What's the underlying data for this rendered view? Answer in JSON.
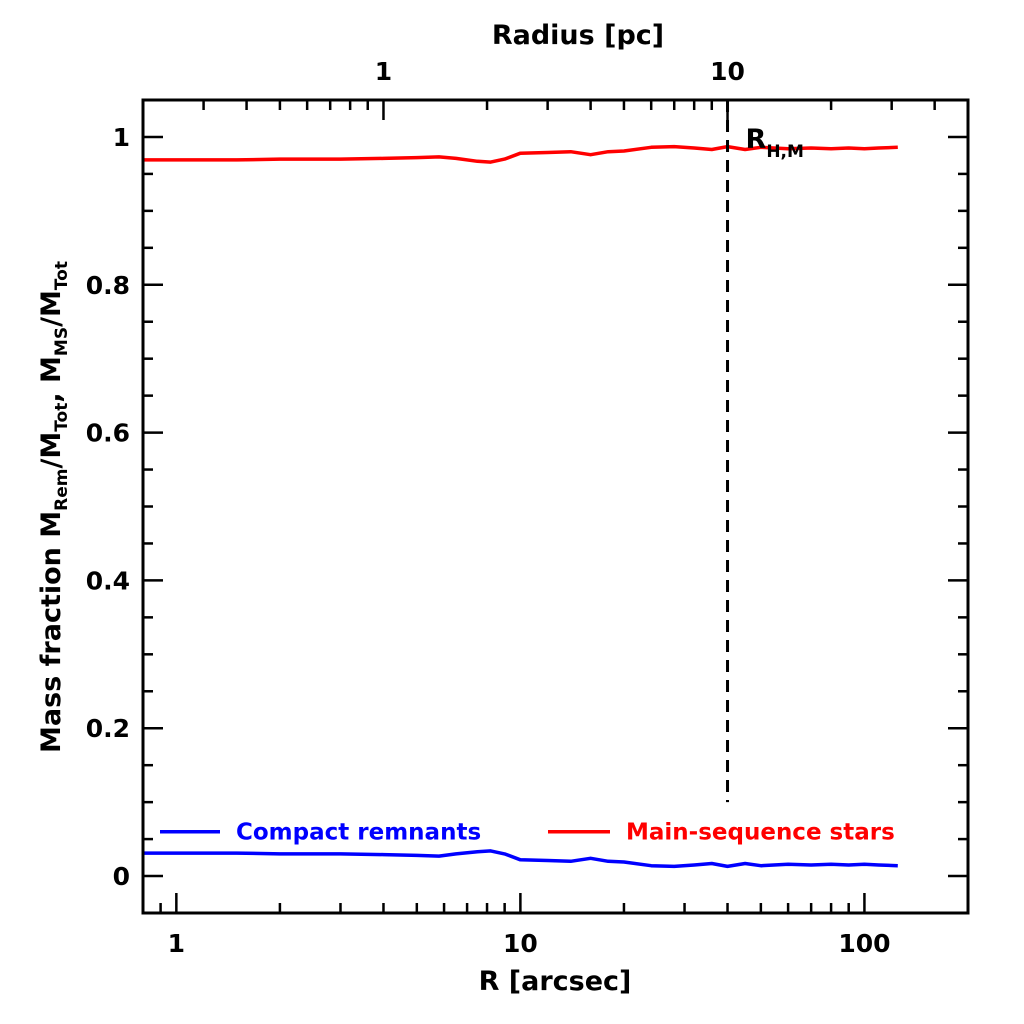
{
  "chart_data": {
    "type": "line",
    "xlabel": "R [arcsec]",
    "x2label": "Radius [pc]",
    "ylabel_parts": {
      "prefix": "Mass fraction  M",
      "sub1": "Rem",
      "mid1": "/M",
      "sub2": "Tot",
      "mid2": ", M",
      "sub3": "MS",
      "mid3": "/M",
      "sub4": "Tot"
    },
    "x_scale": "log",
    "xlim": [
      0.8,
      200
    ],
    "ylim": [
      -0.05,
      1.05
    ],
    "x_ticks": [
      "1",
      "10",
      "100"
    ],
    "y_ticks": [
      "0",
      "0.2",
      "0.4",
      "0.6",
      "0.8",
      "1"
    ],
    "x2_ticks": [
      {
        "label": "1",
        "arcsec": 4.0
      },
      {
        "label": "10",
        "arcsec": 40.0
      }
    ],
    "vline": {
      "x": 40.0,
      "label": "R",
      "label_sub": "H,M",
      "ymax": 0.1,
      "ytop": 1.05,
      "color": "#000000"
    },
    "series": [
      {
        "name": "Main-sequence stars",
        "color": "#ff0000",
        "x": [
          0.8,
          1.0,
          1.5,
          2.0,
          3.0,
          4.0,
          5.0,
          5.8,
          6.5,
          7.5,
          8.2,
          9.0,
          10.0,
          12.0,
          14.0,
          16.0,
          18.0,
          20.0,
          24.0,
          28.0,
          32.0,
          36.0,
          40.0,
          45.0,
          50.0,
          60.0,
          70.0,
          80.0,
          90.0,
          100.0,
          110.0,
          125.0
        ],
        "values": [
          0.969,
          0.969,
          0.969,
          0.97,
          0.97,
          0.971,
          0.972,
          0.973,
          0.971,
          0.967,
          0.966,
          0.97,
          0.978,
          0.979,
          0.98,
          0.976,
          0.98,
          0.981,
          0.986,
          0.987,
          0.985,
          0.983,
          0.987,
          0.983,
          0.986,
          0.984,
          0.985,
          0.984,
          0.985,
          0.984,
          0.985,
          0.986
        ]
      },
      {
        "name": "Compact remnants",
        "color": "#0000ff",
        "x": [
          0.8,
          1.0,
          1.5,
          2.0,
          3.0,
          4.0,
          5.0,
          5.8,
          6.5,
          7.5,
          8.2,
          9.0,
          10.0,
          12.0,
          14.0,
          16.0,
          18.0,
          20.0,
          24.0,
          28.0,
          32.0,
          36.0,
          40.0,
          45.0,
          50.0,
          60.0,
          70.0,
          80.0,
          90.0,
          100.0,
          110.0,
          125.0
        ],
        "values": [
          0.031,
          0.031,
          0.031,
          0.03,
          0.03,
          0.029,
          0.028,
          0.027,
          0.03,
          0.033,
          0.034,
          0.03,
          0.022,
          0.021,
          0.02,
          0.024,
          0.02,
          0.019,
          0.014,
          0.013,
          0.015,
          0.017,
          0.013,
          0.017,
          0.014,
          0.016,
          0.015,
          0.016,
          0.015,
          0.016,
          0.015,
          0.014
        ]
      }
    ],
    "legend_order": [
      "Compact remnants",
      "Main-sequence stars"
    ],
    "legend_y": 0.06
  }
}
